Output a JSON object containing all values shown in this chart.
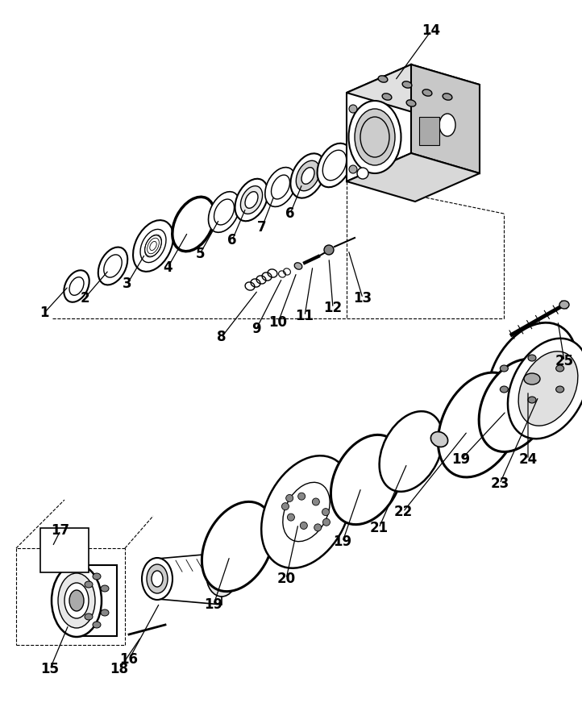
{
  "bg_color": "#ffffff",
  "line_color": "#000000",
  "label_color": "#000000",
  "fig_width": 7.22,
  "fig_height": 8.77,
  "dpi": 100,
  "font_size": 12
}
